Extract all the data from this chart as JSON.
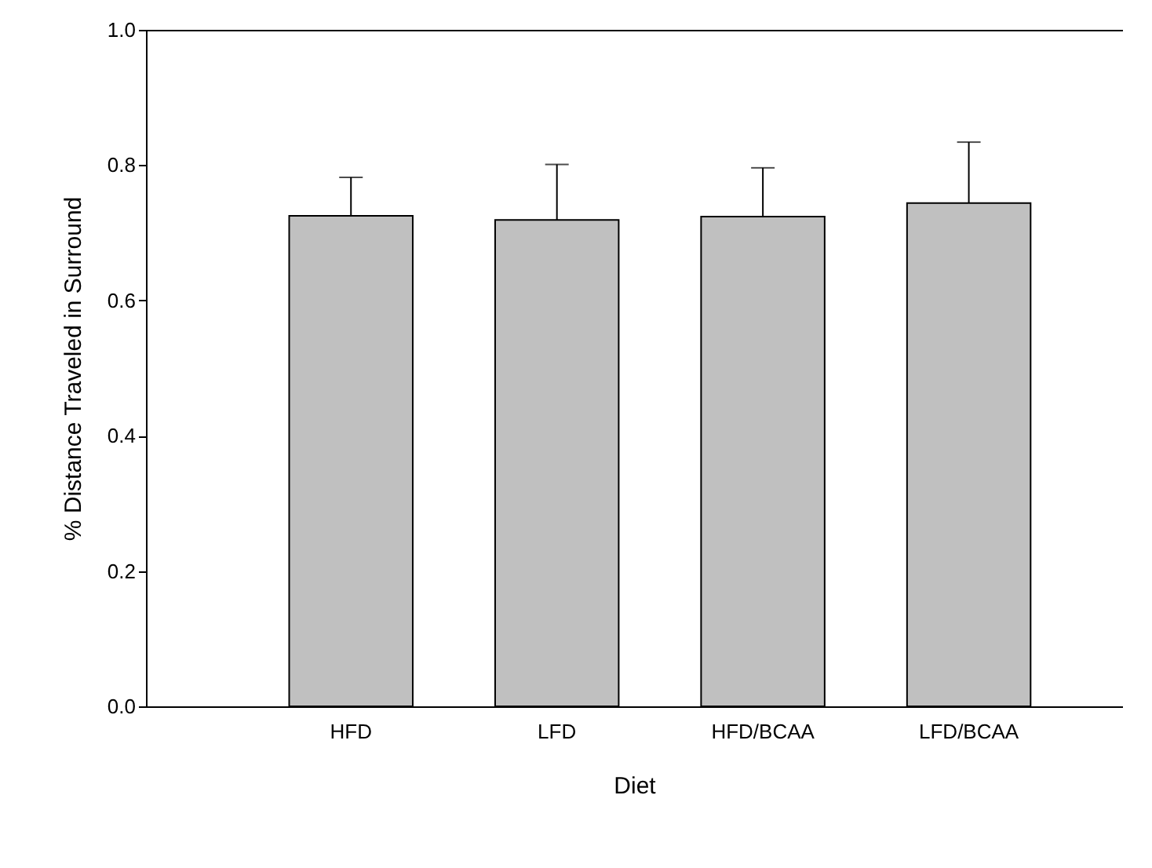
{
  "chart_data": {
    "type": "bar",
    "xlabel": "Diet",
    "ylabel": "% Distance Traveled in Surround",
    "categories": [
      "HFD",
      "LFD",
      "HFD/BCAA",
      "LFD/BCAA"
    ],
    "values": [
      0.725,
      0.719,
      0.724,
      0.744
    ],
    "errors": [
      [
        0.725,
        0.782
      ],
      [
        0.719,
        0.801
      ],
      [
        0.724,
        0.796
      ],
      [
        0.744,
        0.834
      ]
    ],
    "color": "#c0c0c0",
    "ylim": [
      0,
      1
    ],
    "yticks": [
      {
        "value": 0,
        "label": "0.0"
      },
      0.2,
      0.4,
      0.6,
      0.8,
      {
        "value": 1,
        "label": "1.0"
      }
    ],
    "grid": false
  }
}
